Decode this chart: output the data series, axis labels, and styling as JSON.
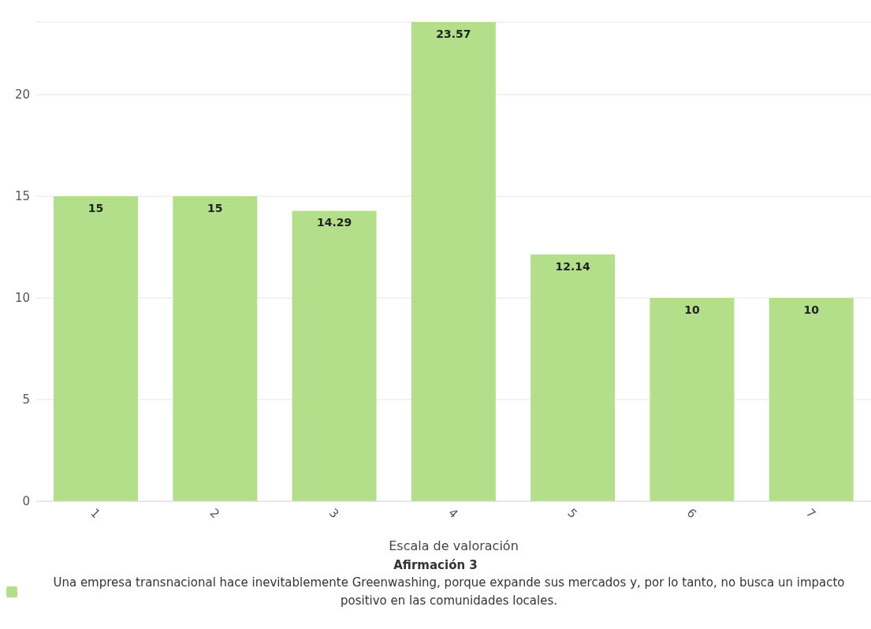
{
  "chart_data": {
    "type": "bar",
    "xlabel": "Escala de valoración",
    "categories": [
      "1",
      "2",
      "3",
      "4",
      "5",
      "6",
      "7"
    ],
    "series": [
      {
        "name": "Una empresa transnacional hace inevitablemente Greenwashing, porque expande sus mercados y, por lo tanto, no busca un impacto positivo en las comunidades locales.",
        "color": "#b3df8a",
        "values": [
          15,
          15,
          14.29,
          23.57,
          12.14,
          10,
          10
        ]
      }
    ],
    "ylim": [
      0,
      23.57
    ],
    "yticks": [
      0,
      5,
      10,
      15,
      20
    ],
    "grid": "y",
    "data_labels": true,
    "legend": "bottom",
    "legend_title": "Afirmación 3"
  }
}
